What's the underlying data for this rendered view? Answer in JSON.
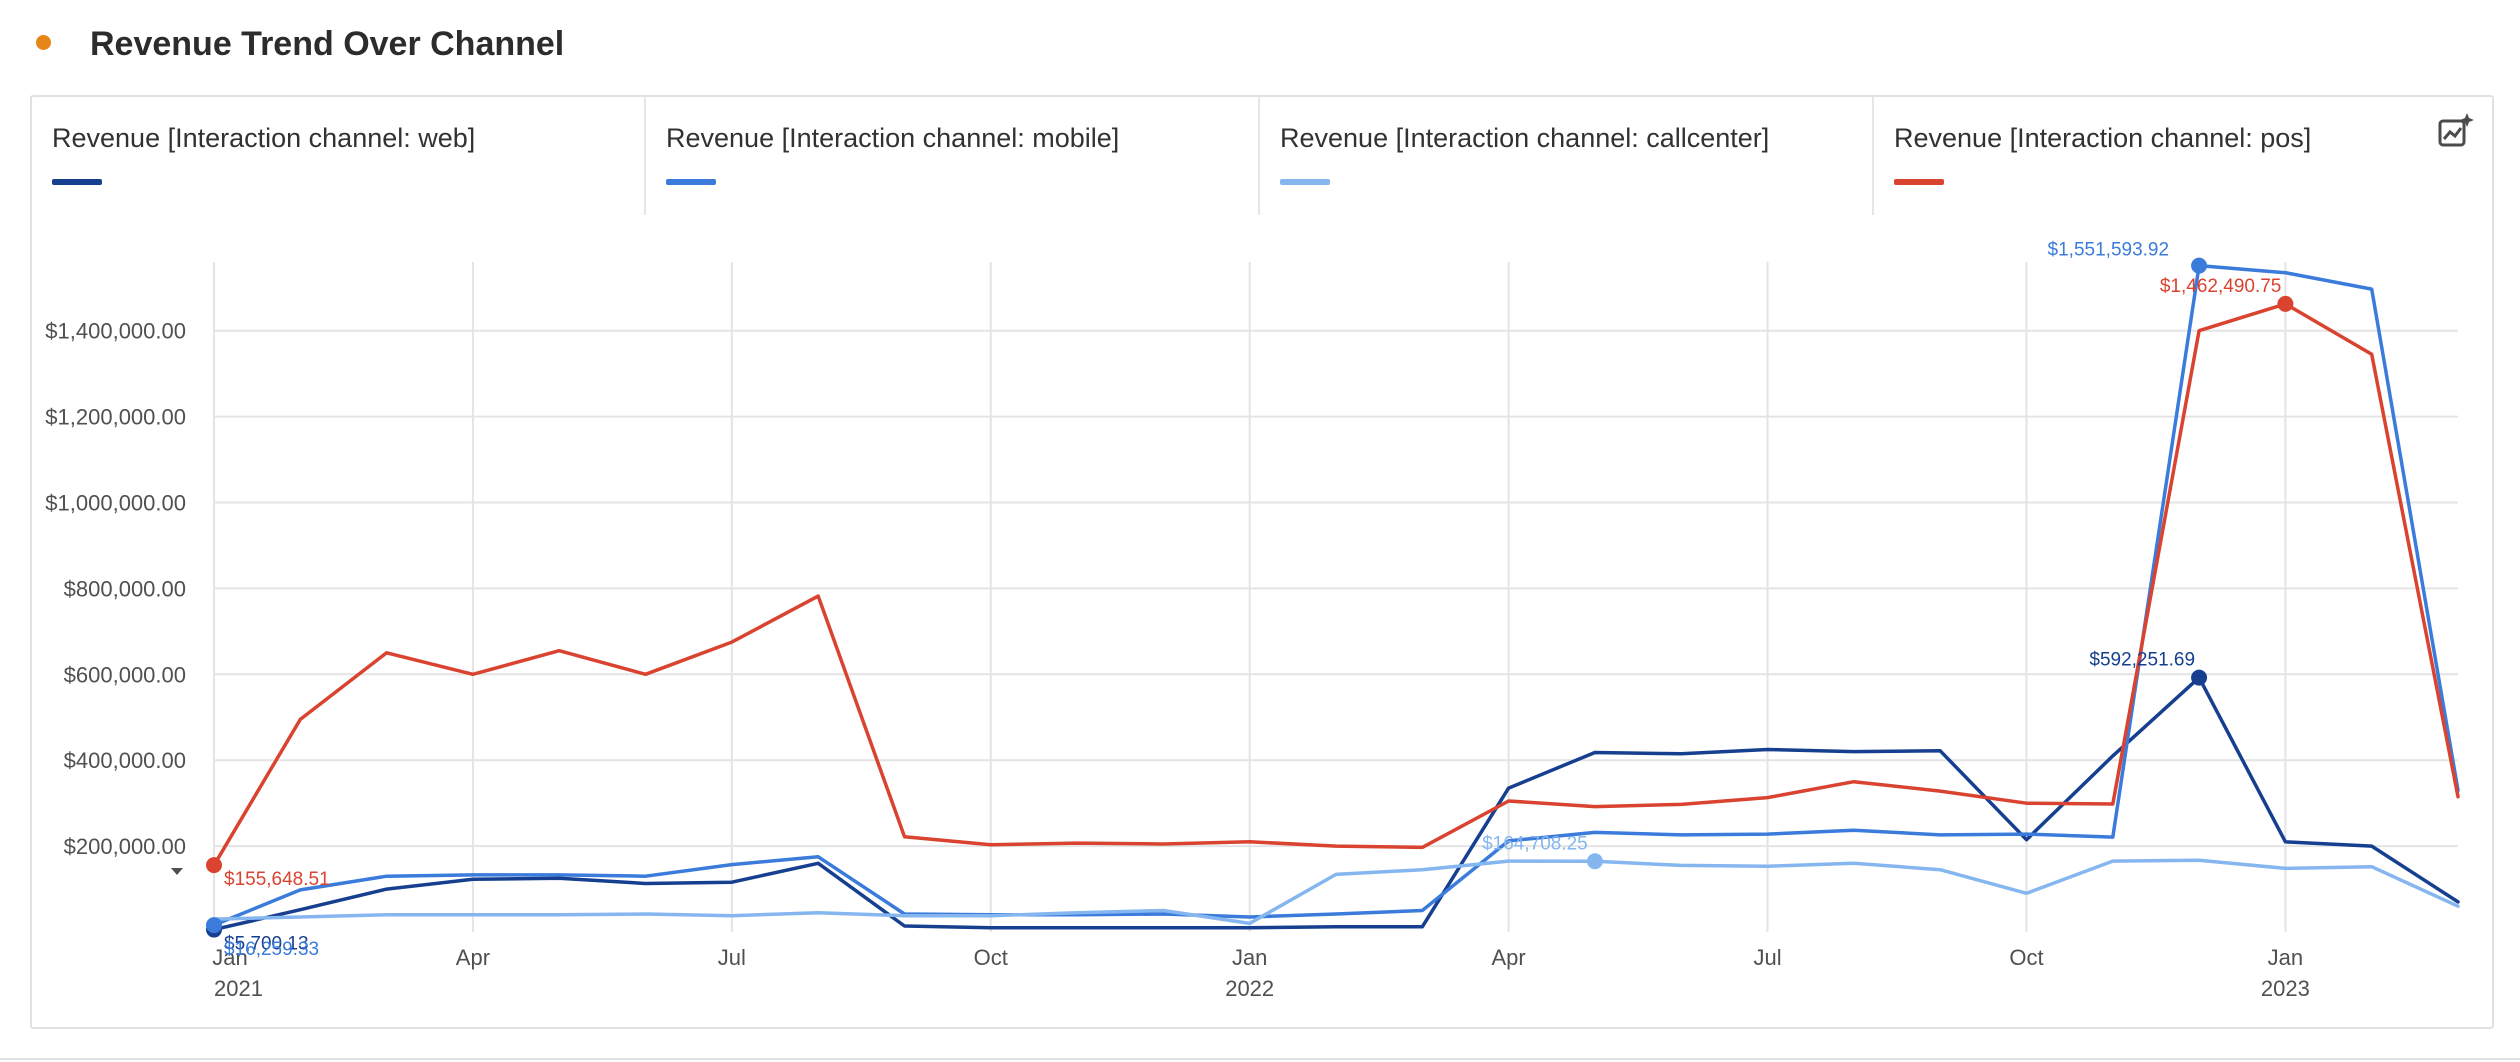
{
  "title": "Revenue Trend Over Channel",
  "colors": {
    "status_dot": "#e68619"
  },
  "icons": {
    "insight": "insight-sparkle-icon",
    "collapse": "caret-down-icon"
  },
  "legend": [
    {
      "label": "Revenue [Interaction channel: web]",
      "color": "#163f8f"
    },
    {
      "label": "Revenue [Interaction channel: mobile]",
      "color": "#3a7bdc"
    },
    {
      "label": "Revenue [Interaction channel: callcenter]",
      "color": "#86b6f0"
    },
    {
      "label": "Revenue [Interaction channel: pos]",
      "color": "#d9432f"
    }
  ],
  "chart_data": {
    "type": "line",
    "x": [
      "2021-01",
      "2021-02",
      "2021-03",
      "2021-04",
      "2021-05",
      "2021-06",
      "2021-07",
      "2021-08",
      "2021-09",
      "2021-10",
      "2021-11",
      "2021-12",
      "2022-01",
      "2022-02",
      "2022-03",
      "2022-04",
      "2022-05",
      "2022-06",
      "2022-07",
      "2022-08",
      "2022-09",
      "2022-10",
      "2022-11",
      "2022-12",
      "2023-01",
      "2023-02",
      "2023-03"
    ],
    "x_ticks": [
      {
        "x": "2021-01",
        "label": "Jan",
        "year": "2021"
      },
      {
        "x": "2021-04",
        "label": "Apr"
      },
      {
        "x": "2021-07",
        "label": "Jul"
      },
      {
        "x": "2021-10",
        "label": "Oct"
      },
      {
        "x": "2022-01",
        "label": "Jan",
        "year": "2022"
      },
      {
        "x": "2022-04",
        "label": "Apr"
      },
      {
        "x": "2022-07",
        "label": "Jul"
      },
      {
        "x": "2022-10",
        "label": "Oct"
      },
      {
        "x": "2023-01",
        "label": "Jan",
        "year": "2023"
      }
    ],
    "y_ticks": [
      {
        "value": 200000,
        "label": "$200,000.00"
      },
      {
        "value": 400000,
        "label": "$400,000.00"
      },
      {
        "value": 600000,
        "label": "$600,000.00"
      },
      {
        "value": 800000,
        "label": "$800,000.00"
      },
      {
        "value": 1000000,
        "label": "$1,000,000.00"
      },
      {
        "value": 1200000,
        "label": "$1,200,000.00"
      },
      {
        "value": 1400000,
        "label": "$1,400,000.00"
      }
    ],
    "ylim": [
      0,
      1560000
    ],
    "grid": true,
    "series": [
      {
        "name": "Revenue [Interaction channel: web]",
        "color": "#163f8f",
        "width": 3.5,
        "values": [
          5700,
          52000,
          100000,
          123000,
          125000,
          113000,
          116000,
          160000,
          14000,
          10000,
          10000,
          10000,
          10000,
          12000,
          12000,
          335000,
          418000,
          415000,
          425000,
          420000,
          422000,
          215000,
          410000,
          592251.69,
          210000,
          200000,
          70000
        ]
      },
      {
        "name": "Revenue [Interaction channel: mobile]",
        "color": "#3a7bdc",
        "width": 3.5,
        "values": [
          16000,
          98000,
          130000,
          133000,
          133000,
          130000,
          157000,
          175000,
          42000,
          40000,
          40000,
          42000,
          35000,
          42000,
          50000,
          212000,
          232000,
          226000,
          228000,
          237000,
          226000,
          228000,
          221000,
          1551593.92,
          1535000,
          1497000,
          330000
        ]
      },
      {
        "name": "Revenue [Interaction channel: callcenter]",
        "color": "#86b6f0",
        "width": 3.5,
        "values": [
          30000,
          35000,
          40000,
          40000,
          40000,
          42000,
          38000,
          45000,
          38000,
          38000,
          45000,
          50000,
          20000,
          134000,
          145000,
          165000,
          164708.25,
          155000,
          153000,
          160000,
          145000,
          90000,
          165000,
          167000,
          148000,
          152000,
          60000
        ]
      },
      {
        "name": "Revenue [Interaction channel: pos]",
        "color": "#d9432f",
        "width": 3.5,
        "values": [
          155648.51,
          495000,
          650000,
          600000,
          655000,
          600000,
          675000,
          782000,
          222000,
          203000,
          207000,
          205000,
          210000,
          200000,
          197000,
          305000,
          292000,
          297000,
          313000,
          350000,
          328000,
          300000,
          298000,
          1400000,
          1462490.75,
          1345000,
          315000
        ]
      }
    ],
    "annotations": [
      {
        "series": 3,
        "index": 0,
        "label": "$155,648.51",
        "anchor": "right"
      },
      {
        "series": 0,
        "index": 0,
        "label": "$5,700.13",
        "anchor": "right"
      },
      {
        "series": 1,
        "index": 0,
        "label": "$16,259.33",
        "anchor": "right"
      },
      {
        "series": 2,
        "index": 16,
        "label": "$164,708.25",
        "anchor": "above"
      },
      {
        "series": 0,
        "index": 23,
        "label": "$592,251.69",
        "anchor": "above-left"
      },
      {
        "series": 1,
        "index": 23,
        "label": "$1,551,593.92",
        "anchor": "left"
      },
      {
        "series": 3,
        "index": 24,
        "label": "$1,462,490.75",
        "anchor": "above-left"
      }
    ]
  }
}
